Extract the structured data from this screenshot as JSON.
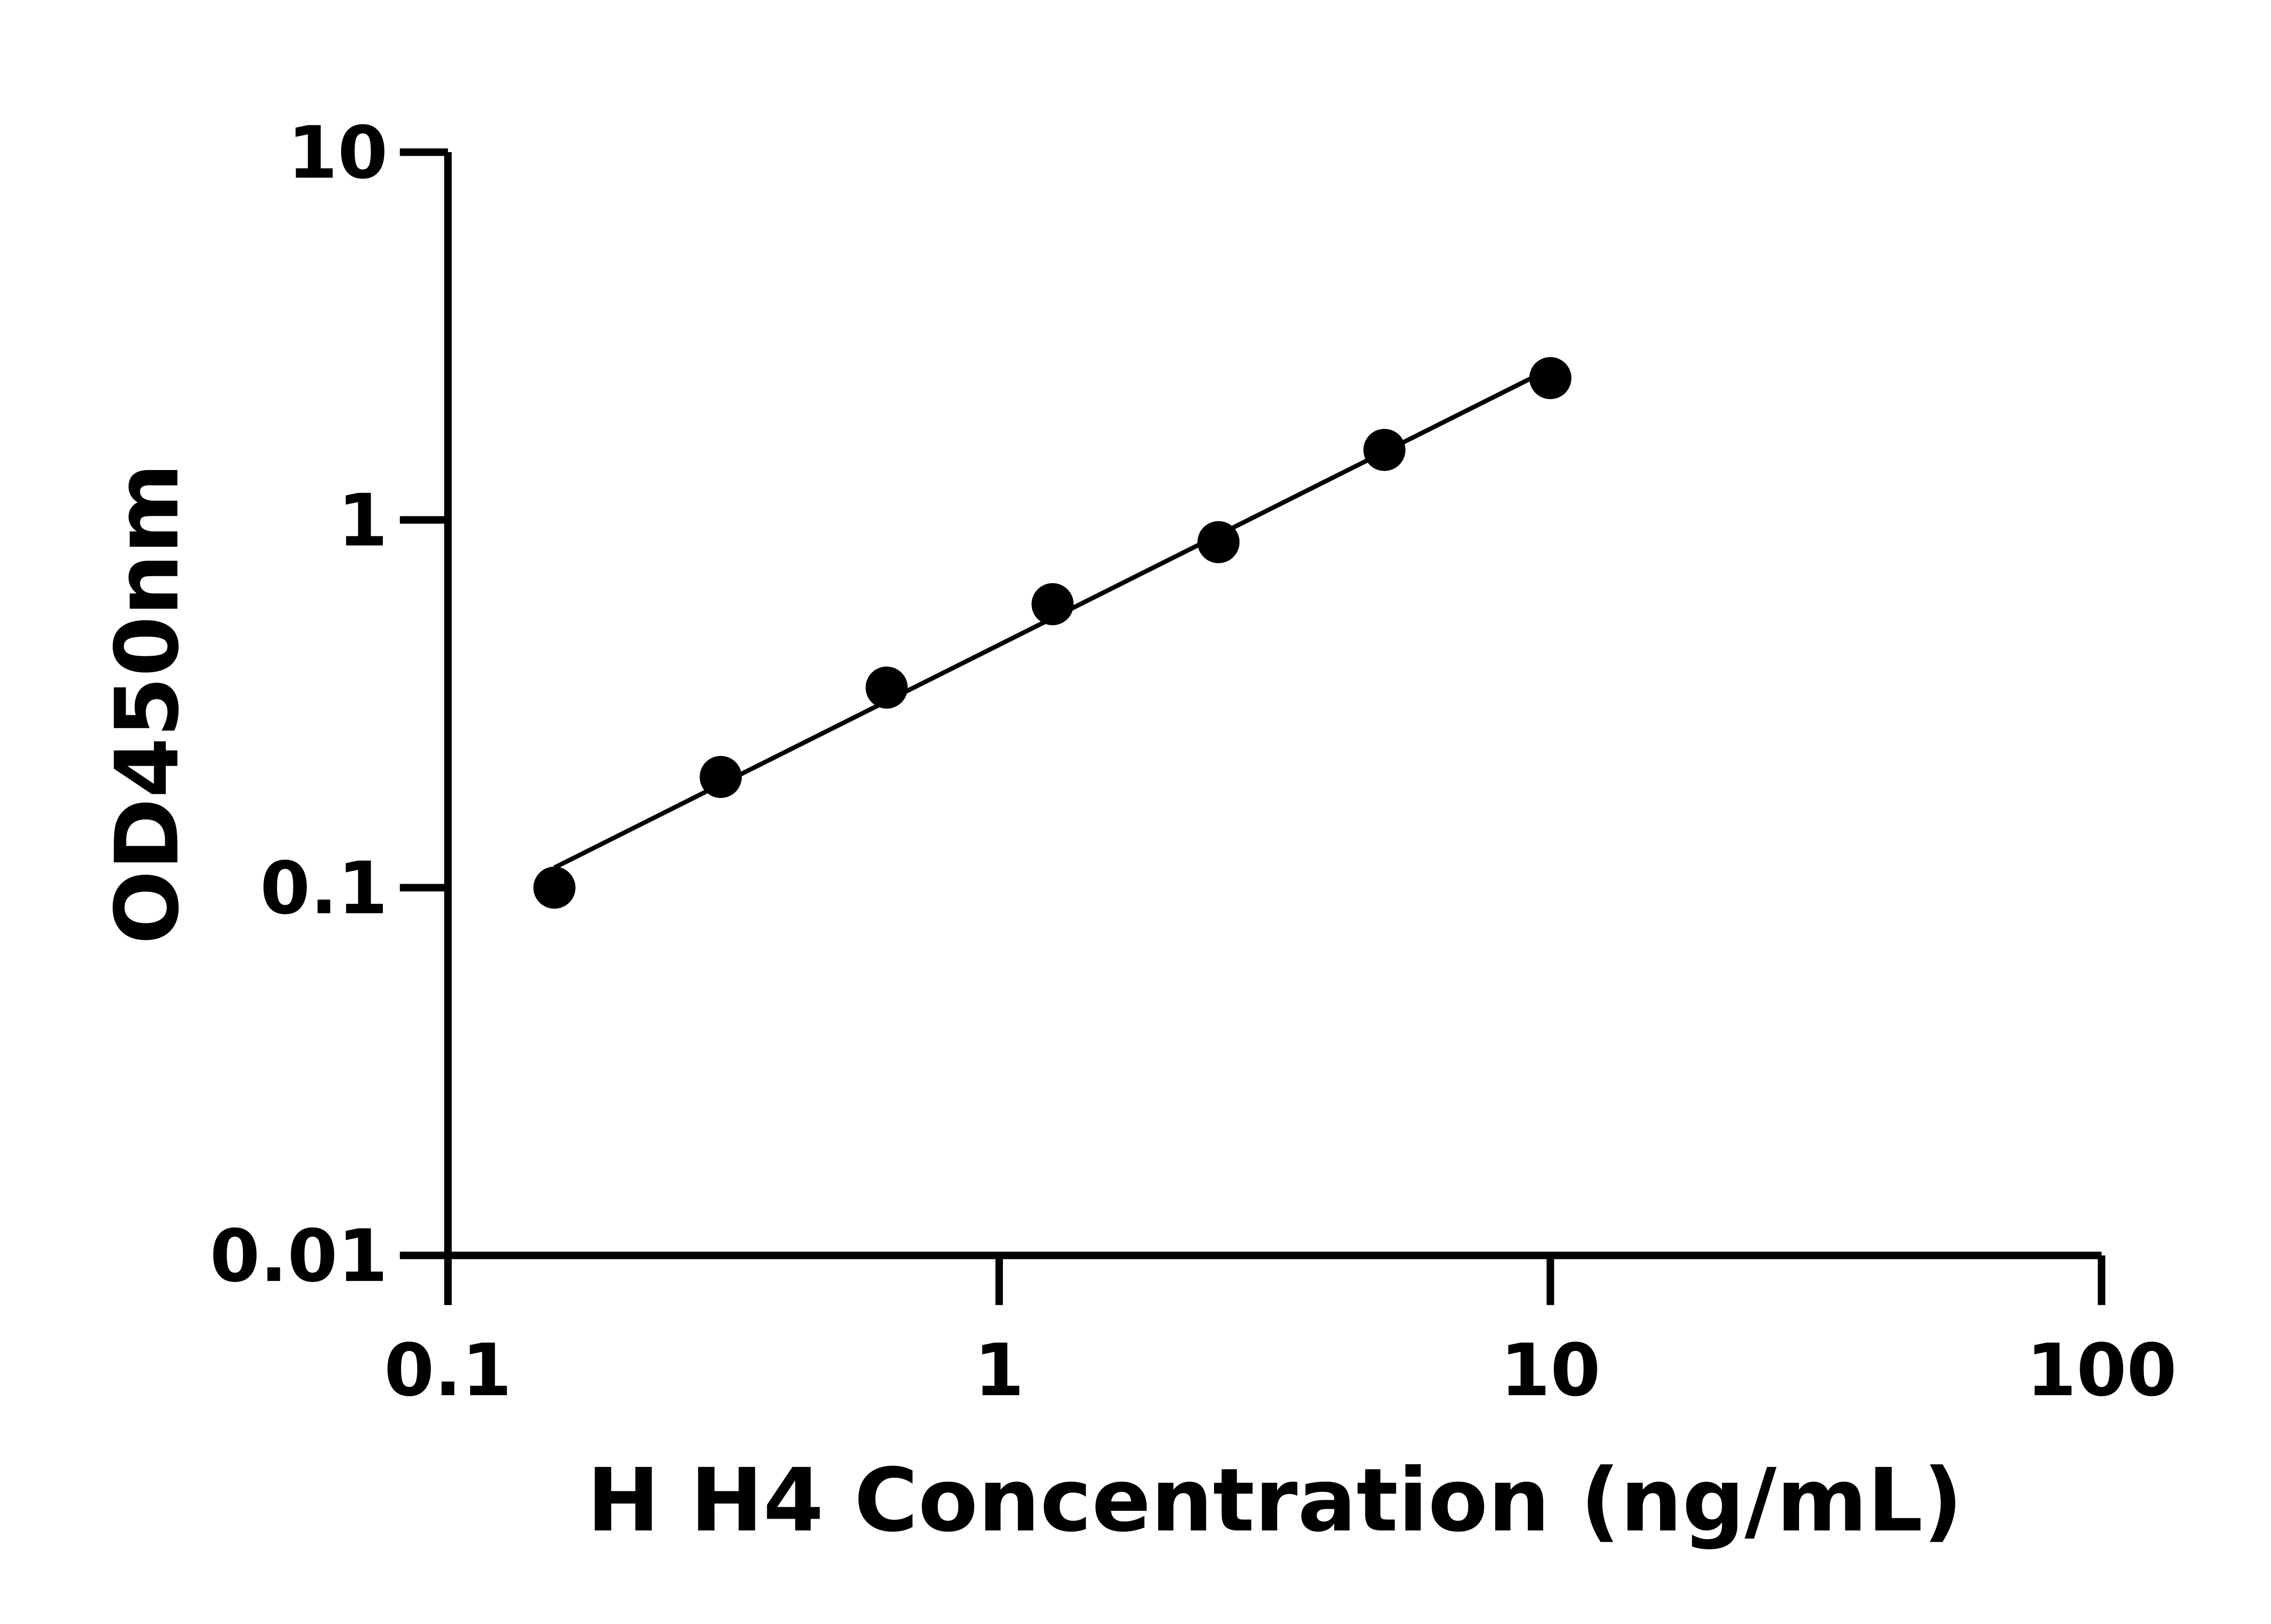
{
  "chart_data": {
    "type": "scatter",
    "title": "",
    "xlabel": "H H4 Concentration (ng/mL)",
    "ylabel": "OD450nm",
    "x_scale": "log",
    "y_scale": "log",
    "xlim": [
      0.1,
      100
    ],
    "ylim": [
      0.01,
      10
    ],
    "x_ticks": [
      "0.1",
      "1",
      "10",
      "100"
    ],
    "y_ticks": [
      "0.01",
      "0.1",
      "1",
      "10"
    ],
    "grid": false,
    "legend": "none",
    "fit_line": true,
    "x": [
      0.156,
      0.3125,
      0.625,
      1.25,
      2.5,
      5,
      10
    ],
    "y": [
      0.1,
      0.2,
      0.35,
      0.59,
      0.87,
      1.55,
      2.43
    ],
    "color": "#000000"
  }
}
